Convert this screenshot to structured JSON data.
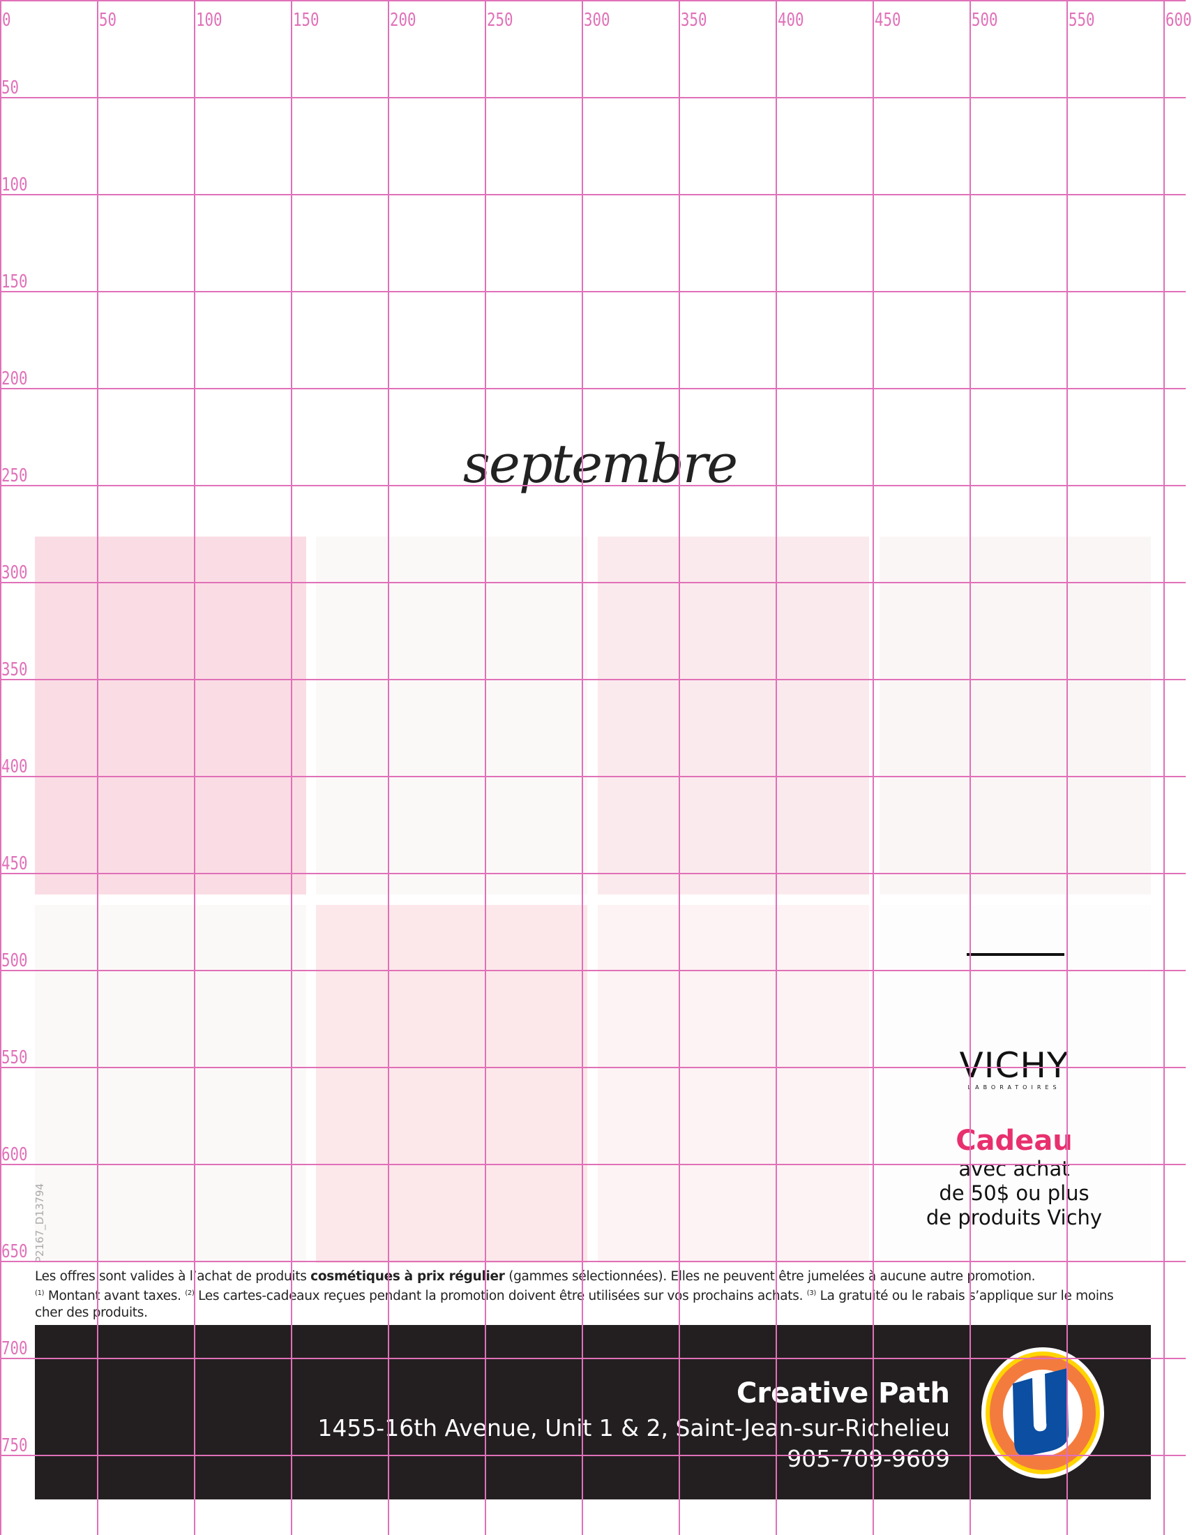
{
  "title": "septembre",
  "colors": {
    "grid": "#e070b8",
    "accent": "#e8306e",
    "bar": "#231f20"
  },
  "tiles": [
    {
      "color": "#fadde4"
    },
    {
      "color": "#fbf9f8"
    },
    {
      "color": "#fbeaed"
    },
    {
      "color": "#fbf6f6"
    },
    {
      "color": "#fbf9f8"
    },
    {
      "color": "#fce8ea"
    },
    {
      "color": "#fdf3f4"
    },
    {
      "color": "#fefdfd"
    }
  ],
  "promo": {
    "brand": "VICHY",
    "brand_sub": "LABORATOIRES",
    "headline": "Cadeau",
    "lines": [
      "avec achat",
      "de 50$ ou plus",
      "de produits Vichy"
    ]
  },
  "legal": {
    "l1a": "Les offres sont valides à l’achat de produits ",
    "l1b": "cosmétiques à prix régulier",
    "l1c": " (gammes sélectionnées). Elles ne peuvent être jumelées à aucune autre promotion.",
    "s1": "(1)",
    "t1": " Montant avant taxes. ",
    "s2": "(2)",
    "t2": " Les cartes-cadeaux reçues pendant la promotion doivent être utilisées sur vos prochains achats. ",
    "s3": "(3)",
    "t3": " La gratuité ou le rabais s’applique sur le moins cher des produits."
  },
  "store": {
    "name": "Creative Path",
    "address": "1455-16th Avenue, Unit 1 & 2, Saint-Jean-sur-Richelieu",
    "phone": "905-709-9609",
    "logo_letter": "U"
  },
  "code": "P2167_D13794",
  "grid": {
    "x_labels": [
      "0",
      "50",
      "100",
      "150",
      "200",
      "250",
      "300",
      "350",
      "400",
      "450",
      "500",
      "550",
      "600"
    ],
    "y_labels": [
      "50",
      "100",
      "150",
      "200",
      "250",
      "300",
      "350",
      "400",
      "450",
      "500",
      "550",
      "600",
      "650",
      "700",
      "750"
    ]
  }
}
